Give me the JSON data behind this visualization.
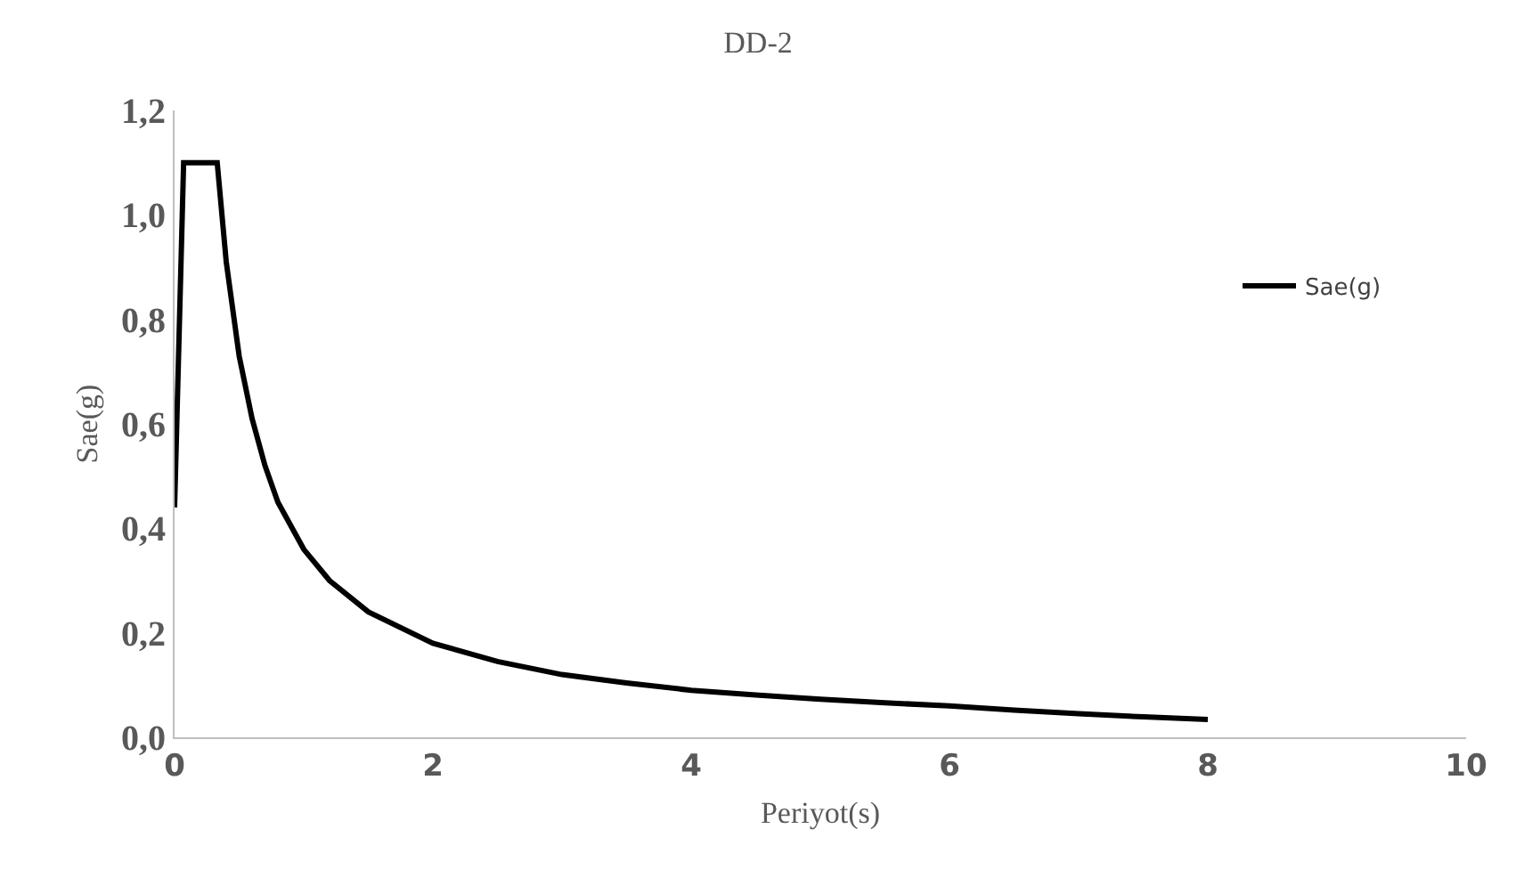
{
  "chart_data": {
    "type": "line",
    "title": "DD-2",
    "xlabel": "Periyot(s)",
    "ylabel": "Sae(g)",
    "x": [
      0,
      0.07,
      0.33,
      0.4,
      0.5,
      0.6,
      0.7,
      0.8,
      1.0,
      1.2,
      1.5,
      2,
      2.5,
      3,
      3.5,
      4,
      4.5,
      5,
      5.5,
      6,
      6.5,
      7,
      7.5,
      8
    ],
    "series": [
      {
        "name": "Sae(g)",
        "color": "#000000",
        "values": [
          0.44,
          1.1,
          1.1,
          0.91,
          0.73,
          0.61,
          0.52,
          0.45,
          0.36,
          0.3,
          0.24,
          0.18,
          0.145,
          0.12,
          0.104,
          0.09,
          0.081,
          0.073,
          0.066,
          0.06,
          0.052,
          0.045,
          0.039,
          0.034
        ]
      }
    ],
    "xlim": [
      0,
      10
    ],
    "xticks": [
      0,
      2,
      4,
      6,
      8,
      10
    ],
    "ylim": [
      0,
      1.2
    ],
    "yticks": [
      {
        "value": 0,
        "label": "0,0"
      },
      {
        "value": 0.2,
        "label": "0,2"
      },
      {
        "value": 0.4,
        "label": "0,4"
      },
      {
        "value": 0.6,
        "label": "0,6"
      },
      {
        "value": 0.8,
        "label": "0,8"
      },
      {
        "value": 1.0,
        "label": "1,0"
      },
      {
        "value": 1.2,
        "label": "1,2"
      }
    ],
    "legend": "right",
    "marker": "none",
    "line_style": "solid"
  }
}
